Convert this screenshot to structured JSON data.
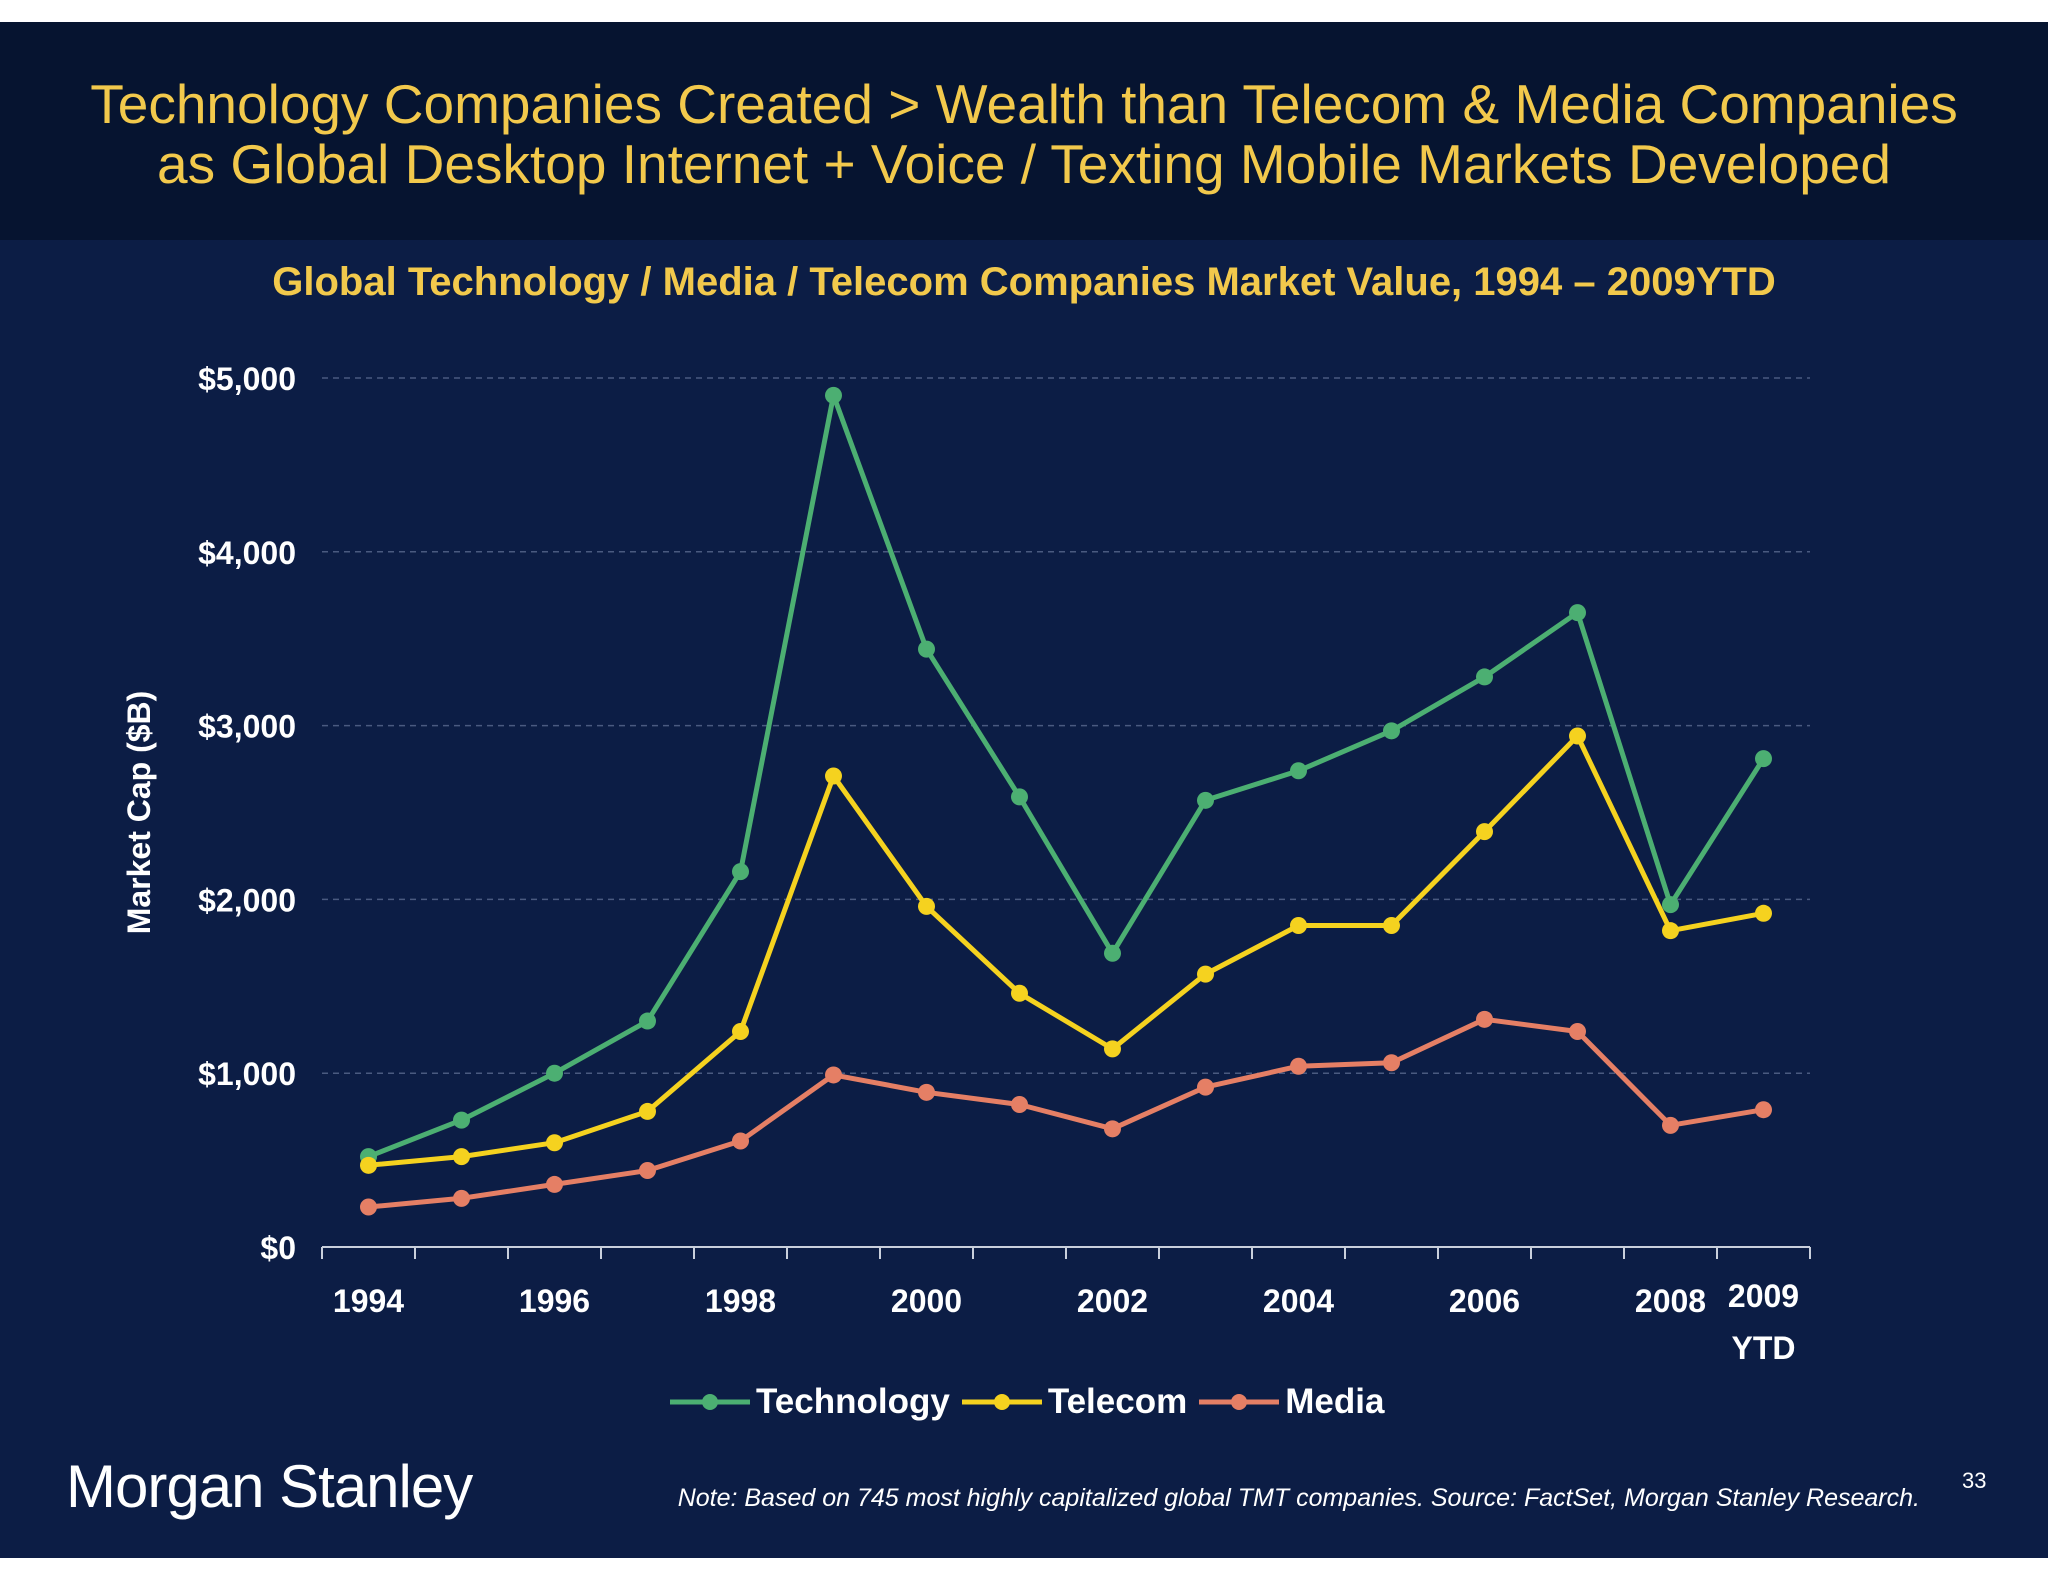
{
  "slide": {
    "title_line1": "Technology Companies Created  > Wealth than Telecom & Media Companies",
    "title_line2": "as Global Desktop Internet + Voice / Texting Mobile Markets Developed",
    "logo": "Morgan Stanley",
    "note": "Note: Based on 745 most highly capitalized global TMT companies. Source: FactSet, Morgan Stanley Research.",
    "page_number": "33"
  },
  "chart_data": {
    "type": "line",
    "title": "Global Technology / Media / Telecom Companies Market Value, 1994 – 2009YTD",
    "ylabel": "Market Cap ($B)",
    "xlabel": "",
    "ylim": [
      0,
      5000
    ],
    "y_ticks": [
      {
        "value": 0,
        "label": "$0"
      },
      {
        "value": 1000,
        "label": "$1,000"
      },
      {
        "value": 2000,
        "label": "$2,000"
      },
      {
        "value": 3000,
        "label": "$3,000"
      },
      {
        "value": 4000,
        "label": "$4,000"
      },
      {
        "value": 5000,
        "label": "$5,000"
      }
    ],
    "categories": [
      "1994",
      "1995",
      "1996",
      "1997",
      "1998",
      "1999",
      "2000",
      "2001",
      "2002",
      "2003",
      "2004",
      "2005",
      "2006",
      "2007",
      "2008",
      "2009YTD"
    ],
    "x_tick_labels": [
      {
        "index": 0,
        "label": "1994"
      },
      {
        "index": 2,
        "label": "1996"
      },
      {
        "index": 4,
        "label": "1998"
      },
      {
        "index": 6,
        "label": "2000"
      },
      {
        "index": 8,
        "label": "2002"
      },
      {
        "index": 10,
        "label": "2004"
      },
      {
        "index": 12,
        "label": "2006"
      },
      {
        "index": 14,
        "label": "2008"
      },
      {
        "index": 15,
        "label": "2009"
      }
    ],
    "x_tick_sublabel": {
      "index": 15,
      "label": "YTD"
    },
    "grid": true,
    "legend_position": "bottom",
    "series": [
      {
        "name": "Technology",
        "color": "#4caf72",
        "values": [
          520,
          730,
          1000,
          1300,
          2160,
          4900,
          3440,
          2590,
          1690,
          2570,
          2740,
          2970,
          3280,
          3650,
          1970,
          2810
        ]
      },
      {
        "name": "Telecom",
        "color": "#f5d21f",
        "values": [
          470,
          520,
          600,
          780,
          1240,
          2710,
          1960,
          1460,
          1140,
          1570,
          1850,
          1850,
          2390,
          2940,
          1820,
          1920
        ]
      },
      {
        "name": "Media",
        "color": "#e57f65",
        "values": [
          230,
          280,
          360,
          440,
          610,
          990,
          890,
          820,
          680,
          920,
          1040,
          1060,
          1310,
          1240,
          700,
          790
        ]
      }
    ]
  }
}
